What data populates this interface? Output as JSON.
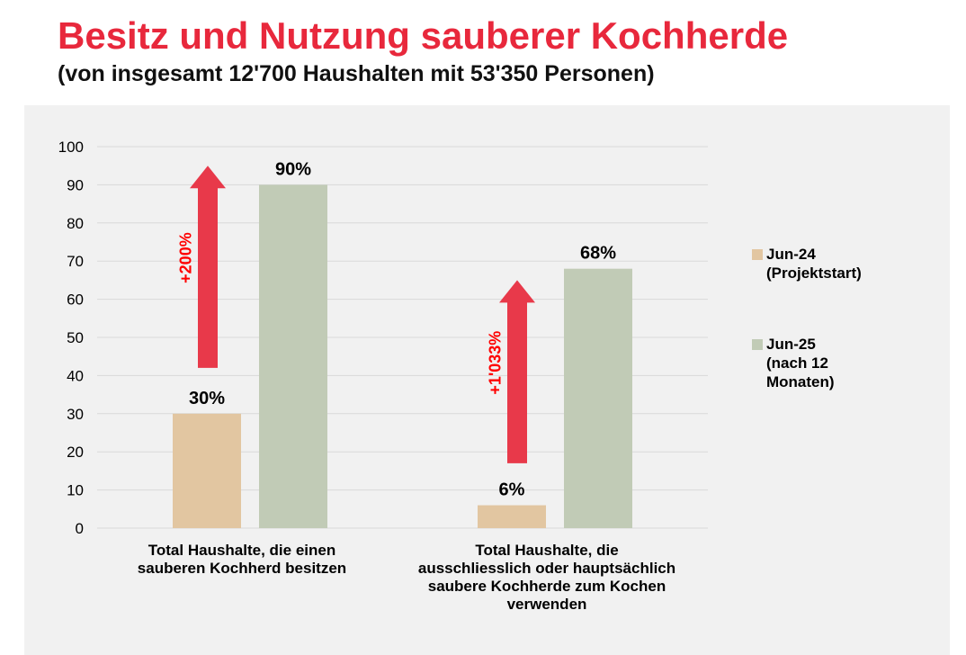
{
  "title": "Besitz und Nutzung sauberer Kochherde",
  "subtitle": "(von insgesamt 12'700 Haushalten mit 53'350 Personen)",
  "colors": {
    "title": "#e8283c",
    "panel_background": "#f1f1f1",
    "series_jun24": "#e2c6a1",
    "series_jun25": "#c1cbb6",
    "arrow": "#e8394a",
    "arrow_label": "#ff0000",
    "grid": "#d9d9d9"
  },
  "chart_data": {
    "type": "bar",
    "categories": [
      [
        "Total Haushalte, die einen",
        "sauberen Kochherd besitzen"
      ],
      [
        "Total Haushalte, die",
        "ausschliesslich oder hauptsächlich",
        "saubere Kochherde zum Kochen",
        "verwenden"
      ]
    ],
    "series": [
      {
        "name": [
          "Jun-24",
          "(Projektstart)"
        ],
        "values": [
          30,
          6
        ],
        "labels": [
          "30%",
          "6%"
        ],
        "color": "#e2c6a1"
      },
      {
        "name": [
          "Jun-25",
          "(nach 12",
          "Monaten)"
        ],
        "values": [
          90,
          68
        ],
        "labels": [
          "90%",
          "68%"
        ],
        "color": "#c1cbb6"
      }
    ],
    "yticks": [
      "0",
      "10",
      "20",
      "30",
      "40",
      "50",
      "60",
      "70",
      "80",
      "90",
      "100"
    ],
    "ylim": [
      0,
      100
    ],
    "grid": true,
    "legend_position": "right",
    "annotations": [
      {
        "category_index": 0,
        "label": "+200%",
        "from": 42,
        "to": 95
      },
      {
        "category_index": 1,
        "label": "+1'033%",
        "from": 17,
        "to": 65
      }
    ]
  }
}
